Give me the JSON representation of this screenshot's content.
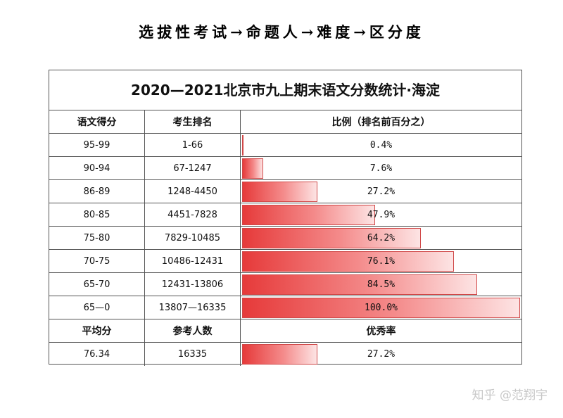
{
  "heading": "选拔性考试→命题人→难度→区分度",
  "table": {
    "title": "2020—2021北京市九上期末语文分数统计·海淀",
    "headers": [
      "语文得分",
      "考生排名",
      "比例（排名前百分之）"
    ],
    "rows": [
      {
        "score": "95-99",
        "rank": "1-66",
        "pct_label": "0.4%",
        "pct": 0.004
      },
      {
        "score": "90-94",
        "rank": "67-1247",
        "pct_label": "7.6%",
        "pct": 0.076
      },
      {
        "score": "86-89",
        "rank": "1248-4450",
        "pct_label": "27.2%",
        "pct": 0.272
      },
      {
        "score": "80-85",
        "rank": "4451-7828",
        "pct_label": "47.9%",
        "pct": 0.479
      },
      {
        "score": "75-80",
        "rank": "7829-10485",
        "pct_label": "64.2%",
        "pct": 0.642
      },
      {
        "score": "70-75",
        "rank": "10486-12431",
        "pct_label": "76.1%",
        "pct": 0.761
      },
      {
        "score": "65-70",
        "rank": "12431-13806",
        "pct_label": "84.5%",
        "pct": 0.845
      },
      {
        "score": "65—0",
        "rank": "13807—16335",
        "pct_label": "100.0%",
        "pct": 1.0
      }
    ],
    "summary_headers": [
      "平均分",
      "参考人数",
      "优秀率"
    ],
    "summary": {
      "average": "76.34",
      "count": "16335",
      "excellent_label": "27.2%",
      "excellent": 0.272
    }
  },
  "colors": {
    "bar_start": "#e63a3a",
    "bar_end": "#fde4e4",
    "bar_border": "#d04848"
  },
  "watermark": "知乎 @范翔宇"
}
